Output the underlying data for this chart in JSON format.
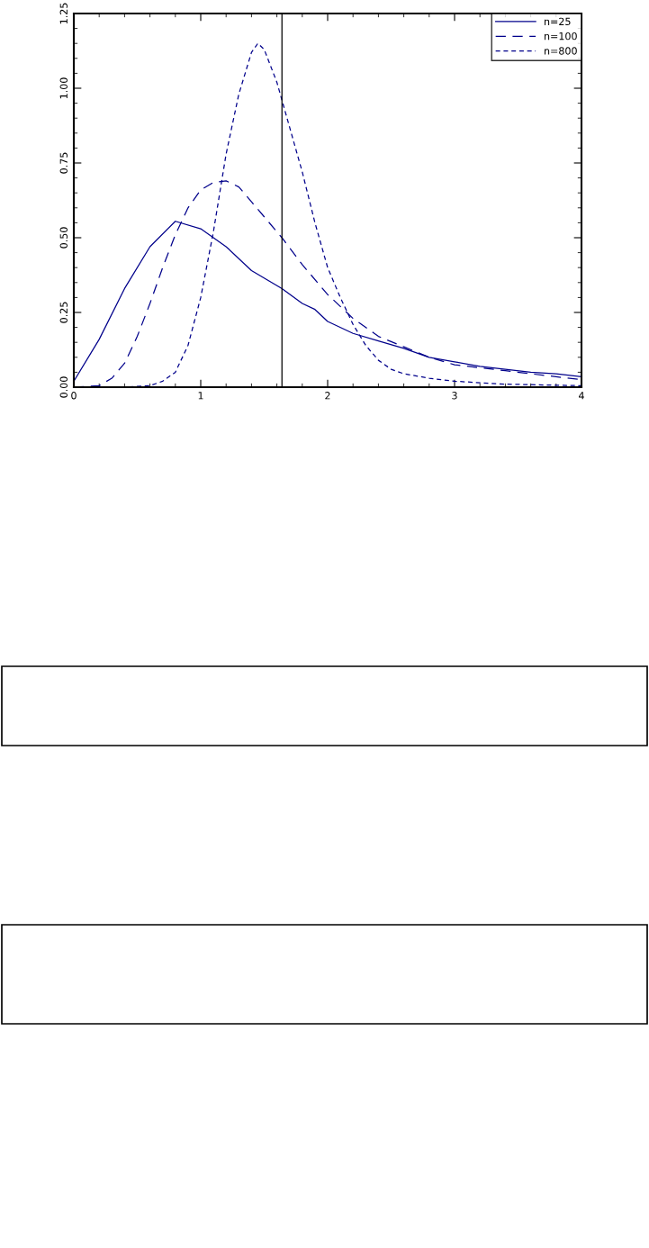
{
  "chart_data": {
    "type": "line",
    "x": [
      0,
      0.2,
      0.4,
      0.6,
      0.8,
      1.0,
      1.2,
      1.4,
      1.64,
      1.8,
      1.9,
      2.0,
      2.2,
      2.4,
      2.6,
      2.8,
      3.0,
      3.2,
      3.4,
      3.6,
      3.8,
      4.0
    ],
    "series": [
      {
        "name": "n=25",
        "color": "#00008b",
        "line_style": "solid",
        "values": [
          0.02,
          0.16,
          0.33,
          0.47,
          0.555,
          0.53,
          0.47,
          0.39,
          0.33,
          0.28,
          0.26,
          0.22,
          0.18,
          0.155,
          0.13,
          0.1,
          0.085,
          0.07,
          0.06,
          0.05,
          0.045,
          0.035
        ]
      },
      {
        "name": "n=100",
        "color": "#00008b",
        "line_style": "dashed",
        "x": [
          0,
          0.2,
          0.3,
          0.4,
          0.5,
          0.6,
          0.7,
          0.8,
          0.9,
          1.0,
          1.1,
          1.2,
          1.3,
          1.4,
          1.5,
          1.64,
          1.8,
          2.0,
          2.2,
          2.4,
          2.6,
          2.8,
          3.0,
          3.2,
          3.4,
          3.6,
          3.8,
          4.0
        ],
        "values": [
          0,
          0.005,
          0.03,
          0.08,
          0.17,
          0.28,
          0.4,
          0.51,
          0.6,
          0.66,
          0.685,
          0.69,
          0.67,
          0.62,
          0.57,
          0.5,
          0.41,
          0.31,
          0.23,
          0.17,
          0.135,
          0.1,
          0.075,
          0.065,
          0.055,
          0.045,
          0.035,
          0.025
        ]
      },
      {
        "name": "n=800",
        "color": "#00008b",
        "line_style": "dotted",
        "x": [
          0,
          0.4,
          0.6,
          0.7,
          0.8,
          0.9,
          1.0,
          1.1,
          1.2,
          1.3,
          1.4,
          1.45,
          1.5,
          1.6,
          1.64,
          1.7,
          1.8,
          1.9,
          2.0,
          2.1,
          2.2,
          2.3,
          2.4,
          2.5,
          2.6,
          2.8,
          3.0,
          3.4,
          4.0
        ],
        "values": [
          0,
          0,
          0.005,
          0.02,
          0.05,
          0.14,
          0.3,
          0.52,
          0.78,
          0.98,
          1.12,
          1.15,
          1.13,
          1.02,
          0.96,
          0.87,
          0.72,
          0.55,
          0.4,
          0.3,
          0.21,
          0.14,
          0.09,
          0.06,
          0.045,
          0.03,
          0.02,
          0.01,
          0.005
        ]
      }
    ],
    "xlim": [
      0,
      4
    ],
    "xticks": [
      0,
      1,
      2,
      3,
      4
    ],
    "ylim": [
      0,
      1.25
    ],
    "yticks": [
      {
        "value": 0,
        "label": "0.00"
      },
      {
        "value": 0.25,
        "label": "0.25"
      },
      {
        "value": 0.5,
        "label": "0.50"
      },
      {
        "value": 0.75,
        "label": "0.75"
      },
      {
        "value": 1.0,
        "label": "1.00"
      },
      {
        "value": 1.25,
        "label": "1.25"
      }
    ],
    "ref_lines": [
      {
        "axis": "x",
        "value": 1.64,
        "color": "#000000"
      }
    ],
    "legend": "top right",
    "grid": false
  }
}
